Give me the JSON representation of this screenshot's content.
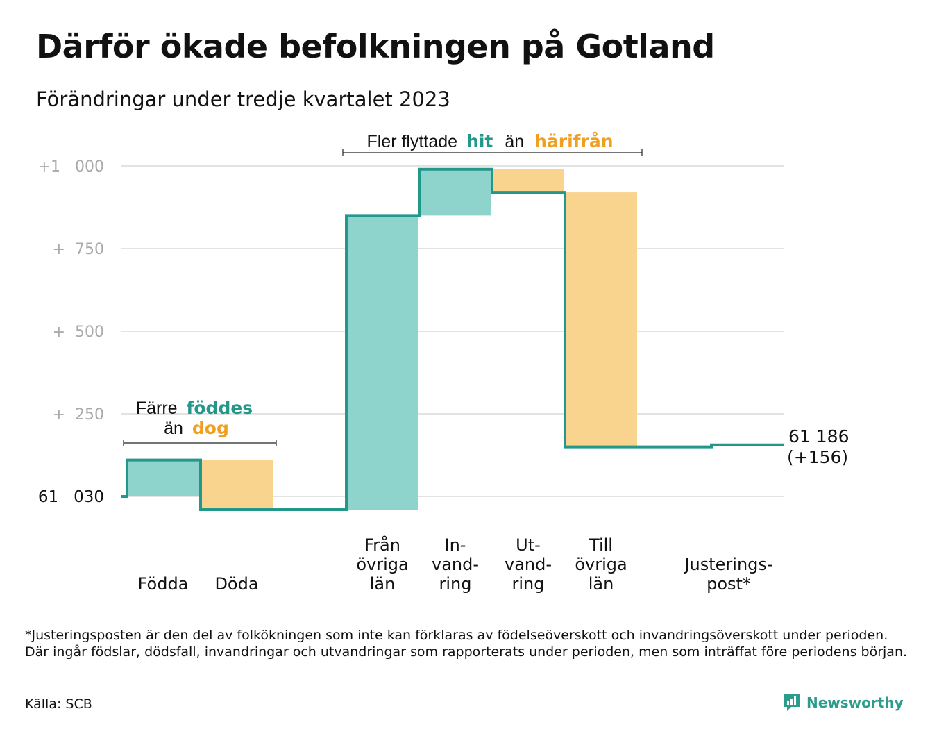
{
  "title": "Därför ökade befolkningen på Gotland",
  "subtitle": "Förändringar under tredje kvartalet 2023",
  "footnote": "*Justeringsposten är den del av folkökningen som inte kan förklaras av födelseöverskott och invandringsöverskott under perioden. Där ingår födslar, dödsfall, invandringar och utvandringar som rapporterats under perioden, men som inträffat före periodens början.",
  "source": "Källa: SCB",
  "brand": "Newsworthy",
  "colors": {
    "increase": "#8ed4cc",
    "decrease": "#f9d48f",
    "line": "#23978a",
    "green_text": "#23978a",
    "orange_text": "#f0a021",
    "grid": "#e3e3e3",
    "tick": "#aaaaaa"
  },
  "annotations": {
    "births": {
      "prefix": "Färre",
      "green": "föddes",
      "middle": "än",
      "orange": "dog"
    },
    "moves": {
      "prefix": "Fler flyttade",
      "green": "hit",
      "middle": "än",
      "orange": "härifrån"
    }
  },
  "chart_data": {
    "type": "waterfall",
    "title": "Därför ökade befolkningen på Gotland",
    "subtitle": "Förändringar under tredje kvartalet 2023",
    "baseline": 61030,
    "y_ticks": [
      {
        "value": 61030,
        "label": "61   030"
      },
      {
        "value": 61280,
        "label": "+  250"
      },
      {
        "value": 61530,
        "label": "+  500"
      },
      {
        "value": 61780,
        "label": "+  750"
      },
      {
        "value": 62030,
        "label": "+1   000"
      }
    ],
    "ylim": [
      60980,
      62040
    ],
    "grid": true,
    "steps": [
      {
        "label": [
          "Födda"
        ],
        "change": 110,
        "kind": "increase"
      },
      {
        "label": [
          "Döda"
        ],
        "change": -150,
        "kind": "decrease"
      },
      {
        "label": [
          "Från",
          "övriga",
          "län"
        ],
        "change": 890,
        "kind": "increase"
      },
      {
        "label": [
          "In-",
          "vand-",
          "ring"
        ],
        "change": 140,
        "kind": "increase"
      },
      {
        "label": [
          "Ut-",
          "vand-",
          "ring"
        ],
        "change": -70,
        "kind": "decrease"
      },
      {
        "label": [
          "Till",
          "övriga",
          "län"
        ],
        "change": -770,
        "kind": "decrease"
      },
      {
        "label": [
          "Justerings-",
          "post*"
        ],
        "change": 6,
        "kind": "line"
      }
    ],
    "end_value_label": "61 186",
    "end_change_label": "(+156)"
  }
}
